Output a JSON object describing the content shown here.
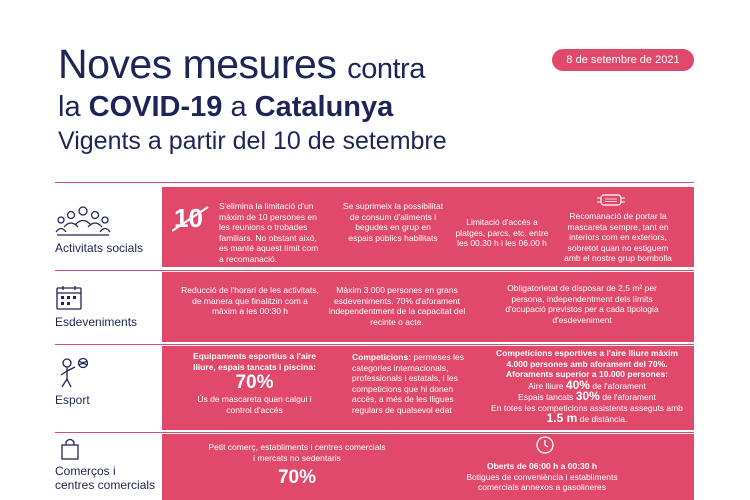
{
  "header": {
    "title_part1": "Noves mesures",
    "title_part2": "contra",
    "title_line2_pre": "la",
    "title_line2_bold1": "COVID-19",
    "title_line2_mid": "a",
    "title_line2_bold2": "Catalunya",
    "subtitle": "Vigents a partir del 10 de setembre",
    "date": "8 de setembre de 2021"
  },
  "rows": [
    {
      "label": "Activitats socials",
      "icon": "people-group-icon",
      "cells": [
        "S'elimina la limitació d'un màxim de 10 persones en les reunions o trobades familiars. No obstant això, es manté aquest límit com a recomanació.",
        "Se suprimeix la possibilitat de consum d'aliments i begudes en grup en espais públics habilitats",
        "Limitació d'accés a platges, parcs, etc. entre les 00.30 h i les 06.00 h",
        "Recomanació de portar la mascareta sempre, tant en interiors com en exteriors, sobretot quan no estiguem amb el nostre grup bombolla"
      ],
      "ten_symbol": "10"
    },
    {
      "label": "Esdeveniments",
      "icon": "calendar-icon",
      "cells": [
        "Reducció de l'horari de les activitats, de manera que finalitzin com a màxim a les 00:30 h",
        "Màxim 3.000 persones en grans esdeveniments. 70% d'aforament independentment de la capacitat del recinte o acte.",
        "Obligatorietat de disposar de 2,5 m² per persona, independentment dels límits d'ocupació previstos per a cada tipologia d'esdeveniment"
      ]
    },
    {
      "label": "Esport",
      "icon": "sports-person-icon",
      "cell1_bold": "Equipaments esportius a l'aire lliure, espais tancats i piscina:",
      "cell1_big": "70%",
      "cell1_text": "Ús de mascareta quan calgui i control d'accés",
      "cell2_bold": "Competicions:",
      "cell2_text": "permeses les categories internacionals, professionals i estatals, i les competicions que hi donen accés, a més de les lligues regulars de qualsevol edat",
      "cell3_bold": "Competicions esportives a l'aire lliure màxim 4.000 persones amb aforament del 70%. Aforaments superior a 10.000 persones:",
      "cell3_line1_pre": "Aire lliure",
      "cell3_line1_big": "40%",
      "cell3_line1_post": "de l'aforament",
      "cell3_line2_pre": "Espais tancats",
      "cell3_line2_big": "30%",
      "cell3_line2_post": "de l'aforament",
      "cell3_line3": "En totes les competicions assistents asseguts amb",
      "cell3_line3_big": "1.5 m",
      "cell3_line3_post": "de distància."
    },
    {
      "label_line1": "Comerços i",
      "label_line2": "centres comercials",
      "icon": "shopping-bag-icon",
      "cell1_text": "Petit comerç, establiments i centres comercials i mercats no sedentaris",
      "cell1_big": "70%",
      "cell2_bold": "Oberts de 06:00 h a 00:30 h",
      "cell2_text": "Botigues de conveniència i establiments comercials annexos a gasolineres",
      "clock_icon": "clock-icon"
    }
  ]
}
